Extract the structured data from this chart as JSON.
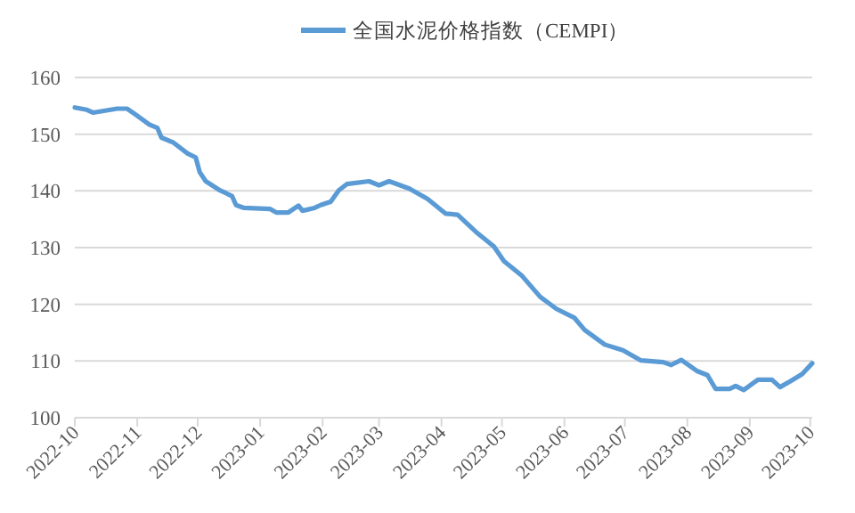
{
  "chart_data": {
    "type": "line",
    "legend": "top",
    "grid": "y",
    "x": [
      "2022-10-01",
      "2022-10-07",
      "2022-10-10",
      "2022-10-22",
      "2022-10-27",
      "2022-10-31",
      "2022-11-07",
      "2022-11-11",
      "2022-11-13",
      "2022-11-19",
      "2022-11-26",
      "2022-11-30",
      "2022-12-02",
      "2022-12-05",
      "2022-12-12",
      "2022-12-18",
      "2022-12-20",
      "2022-12-24",
      "2023-01-06",
      "2023-01-09",
      "2023-01-15",
      "2023-01-20",
      "2023-01-22",
      "2023-01-28",
      "2023-01-31",
      "2023-02-05",
      "2023-02-09",
      "2023-02-13",
      "2023-02-24",
      "2023-03-01",
      "2023-03-06",
      "2023-03-16",
      "2023-03-25",
      "2023-04-03",
      "2023-04-09",
      "2023-04-18",
      "2023-04-27",
      "2023-05-02",
      "2023-05-11",
      "2023-05-20",
      "2023-05-28",
      "2023-06-06",
      "2023-06-11",
      "2023-06-21",
      "2023-06-30",
      "2023-07-09",
      "2023-07-20",
      "2023-07-24",
      "2023-07-29",
      "2023-08-06",
      "2023-08-11",
      "2023-08-15",
      "2023-08-22",
      "2023-08-25",
      "2023-08-29",
      "2023-09-05",
      "2023-09-12",
      "2023-09-16",
      "2023-09-21",
      "2023-09-27",
      "2023-10-02"
    ],
    "series": [
      {
        "name": "全国水泥价格指数（CEMPI）",
        "color": "#5b9bd5",
        "values": [
          154.7,
          154.3,
          153.8,
          154.5,
          154.5,
          153.5,
          151.7,
          151.1,
          149.4,
          148.5,
          146.6,
          145.9,
          143.3,
          141.7,
          140.1,
          139.1,
          137.5,
          137.0,
          136.8,
          136.2,
          136.2,
          137.4,
          136.5,
          137.0,
          137.5,
          138.1,
          140.1,
          141.2,
          141.7,
          141.0,
          141.7,
          140.4,
          138.6,
          136.0,
          135.8,
          132.8,
          130.2,
          127.6,
          125.0,
          121.3,
          119.2,
          117.6,
          115.5,
          112.9,
          111.9,
          110.1,
          109.8,
          109.3,
          110.2,
          108.2,
          107.5,
          105.1,
          105.1,
          105.6,
          104.9,
          106.7,
          106.7,
          105.4,
          106.4,
          107.7,
          109.6
        ]
      }
    ],
    "xlim": [
      "2022-10-01",
      "2023-10-02"
    ],
    "xticks": [
      {
        "value": "2022-10-01",
        "label": "2022-10"
      },
      {
        "value": "2022-11-01",
        "label": "2022-11"
      },
      {
        "value": "2022-12-01",
        "label": "2022-12"
      },
      {
        "value": "2023-01-01",
        "label": "2023-01"
      },
      {
        "value": "2023-02-01",
        "label": "2023-02"
      },
      {
        "value": "2023-03-01",
        "label": "2023-03"
      },
      {
        "value": "2023-04-01",
        "label": "2023-04"
      },
      {
        "value": "2023-05-01",
        "label": "2023-05"
      },
      {
        "value": "2023-06-01",
        "label": "2023-06"
      },
      {
        "value": "2023-07-01",
        "label": "2023-07"
      },
      {
        "value": "2023-08-01",
        "label": "2023-08"
      },
      {
        "value": "2023-09-01",
        "label": "2023-09"
      },
      {
        "value": "2023-10-01",
        "label": "2023-10"
      }
    ],
    "ylim": [
      100,
      160
    ],
    "yticks": [
      100,
      110,
      120,
      130,
      140,
      150,
      160
    ]
  }
}
